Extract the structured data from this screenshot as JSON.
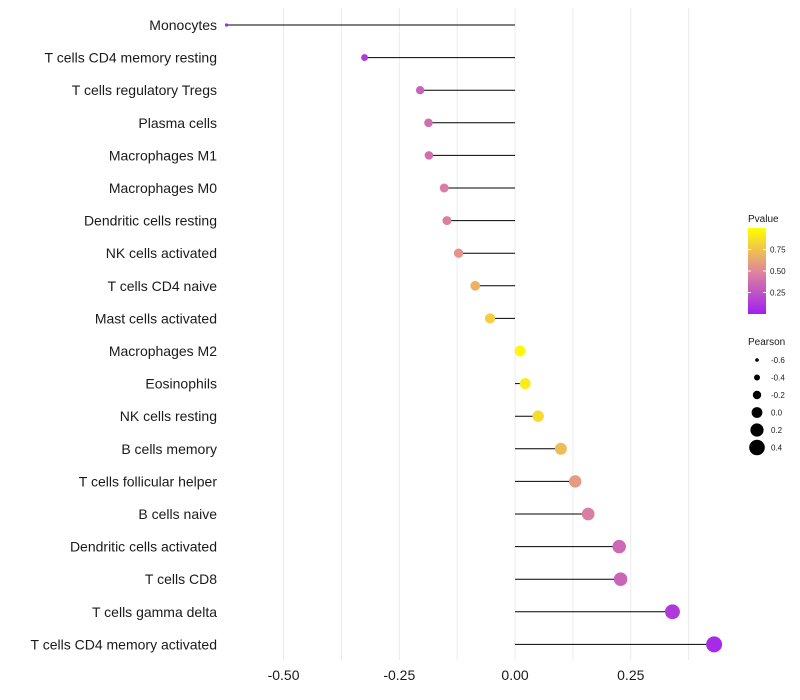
{
  "chart_data": {
    "type": "lollipop",
    "title": "",
    "xlabel": "",
    "ylabel": "",
    "xlim": [
      -0.62,
      0.46
    ],
    "x_ticks": [
      -0.5,
      -0.25,
      0.0,
      0.25
    ],
    "x_tick_labels": [
      "-0.50",
      "-0.25",
      "0.00",
      "0.25"
    ],
    "baseline": 0.0,
    "grid": true,
    "categories": [
      "Monocytes",
      "T cells CD4 memory resting",
      "T cells regulatory  Tregs",
      "Plasma cells",
      "Macrophages M1",
      "Macrophages M0",
      "Dendritic cells resting",
      "NK cells activated",
      "T cells CD4 naive",
      "Mast cells activated",
      "Macrophages M2",
      "Eosinophils",
      "NK cells resting",
      "B cells memory",
      "T cells follicular helper",
      "B cells naive",
      "Dendritic cells activated",
      "T cells CD8",
      "T cells gamma delta",
      "T cells CD4 memory activated"
    ],
    "pearson": [
      -0.623,
      -0.325,
      -0.205,
      -0.187,
      -0.186,
      -0.153,
      -0.147,
      -0.122,
      -0.086,
      -0.054,
      0.011,
      0.022,
      0.05,
      0.099,
      0.13,
      0.158,
      0.225,
      0.228,
      0.34,
      0.43
    ],
    "pvalue": [
      0.03,
      0.12,
      0.32,
      0.38,
      0.38,
      0.45,
      0.46,
      0.55,
      0.68,
      0.8,
      0.97,
      0.92,
      0.85,
      0.72,
      0.58,
      0.45,
      0.35,
      0.33,
      0.12,
      0.05
    ],
    "legend": {
      "color": {
        "title": "Pvalue",
        "ticks": [
          "0.75",
          "0.50",
          "0.25"
        ],
        "tick_values": [
          0.75,
          0.5,
          0.25
        ],
        "range": [
          0.0,
          1.0
        ],
        "low_color": "#a020f0",
        "mid_color": "#e0879a",
        "high_color": "#ffff00"
      },
      "size": {
        "title": "Pearson",
        "ticks": [
          "-0.6",
          "-0.4",
          "-0.2",
          "0.0",
          "0.2",
          "0.4"
        ],
        "tick_values": [
          -0.6,
          -0.4,
          -0.2,
          0.0,
          0.2,
          0.4
        ]
      },
      "placement": "right"
    }
  }
}
